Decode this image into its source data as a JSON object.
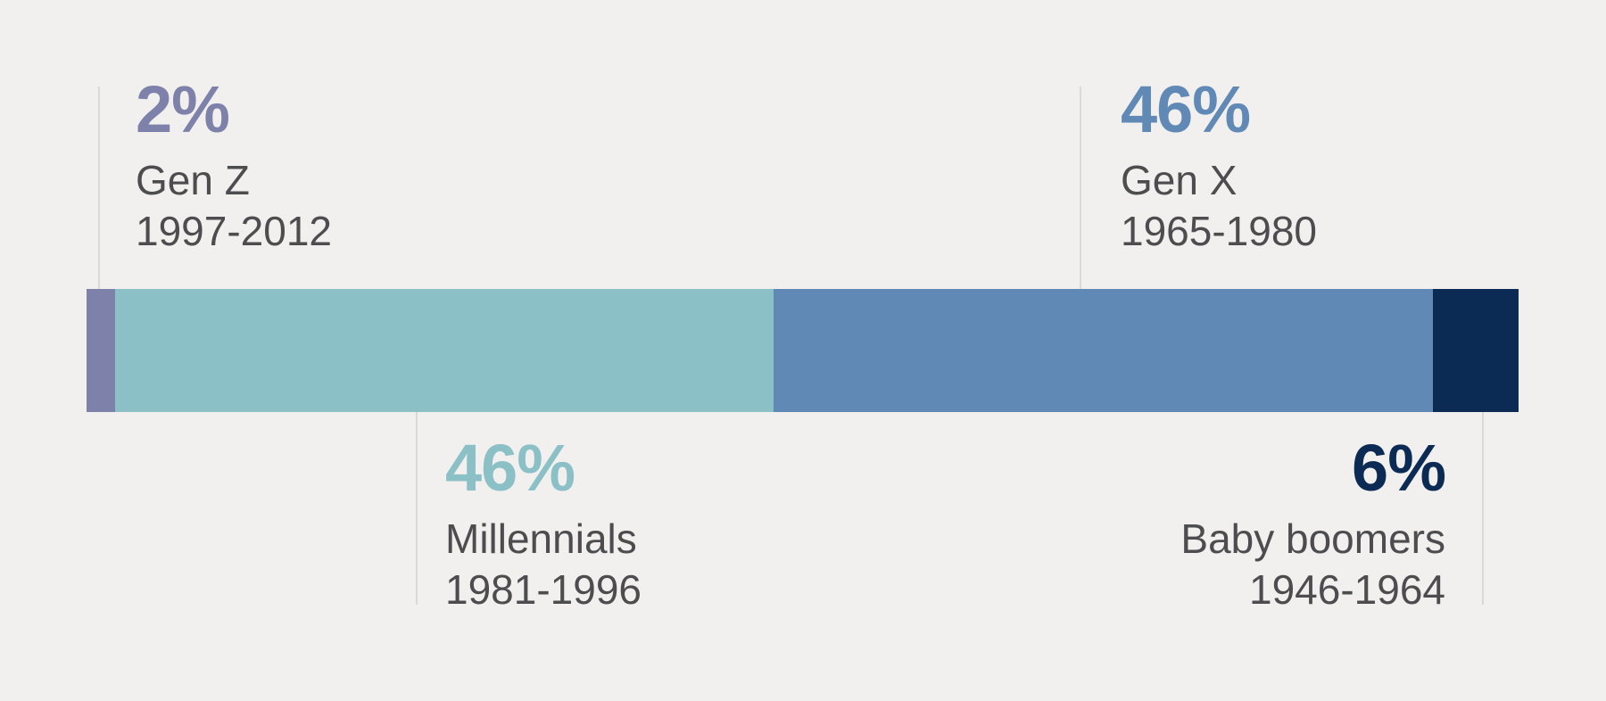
{
  "chart_data": {
    "type": "bar",
    "variant": "horizontal-stacked-single-bar",
    "title": "",
    "unit": "%",
    "total": 100,
    "grid": false,
    "legend_position": "callout-labels",
    "segments": [
      {
        "label": "Gen Z",
        "years": "1997-2012",
        "value": 2,
        "percent_text": "2%",
        "color": "#7e81a9",
        "callout_side": "top"
      },
      {
        "label": "Millennials",
        "years": "1981-1996",
        "value": 46,
        "percent_text": "46%",
        "color": "#8ac0c6",
        "callout_side": "bottom"
      },
      {
        "label": "Gen X",
        "years": "1965-1980",
        "value": 46,
        "percent_text": "46%",
        "color": "#6189b5",
        "callout_side": "top"
      },
      {
        "label": "Baby boomers",
        "years": "1946-1964",
        "value": 6,
        "percent_text": "6%",
        "color": "#0b2a54",
        "callout_side": "bottom"
      }
    ]
  },
  "colors": {
    "background": "#f1f0ef",
    "leader_line": "#d9d9d8",
    "label_text": "#4d4d4f"
  }
}
